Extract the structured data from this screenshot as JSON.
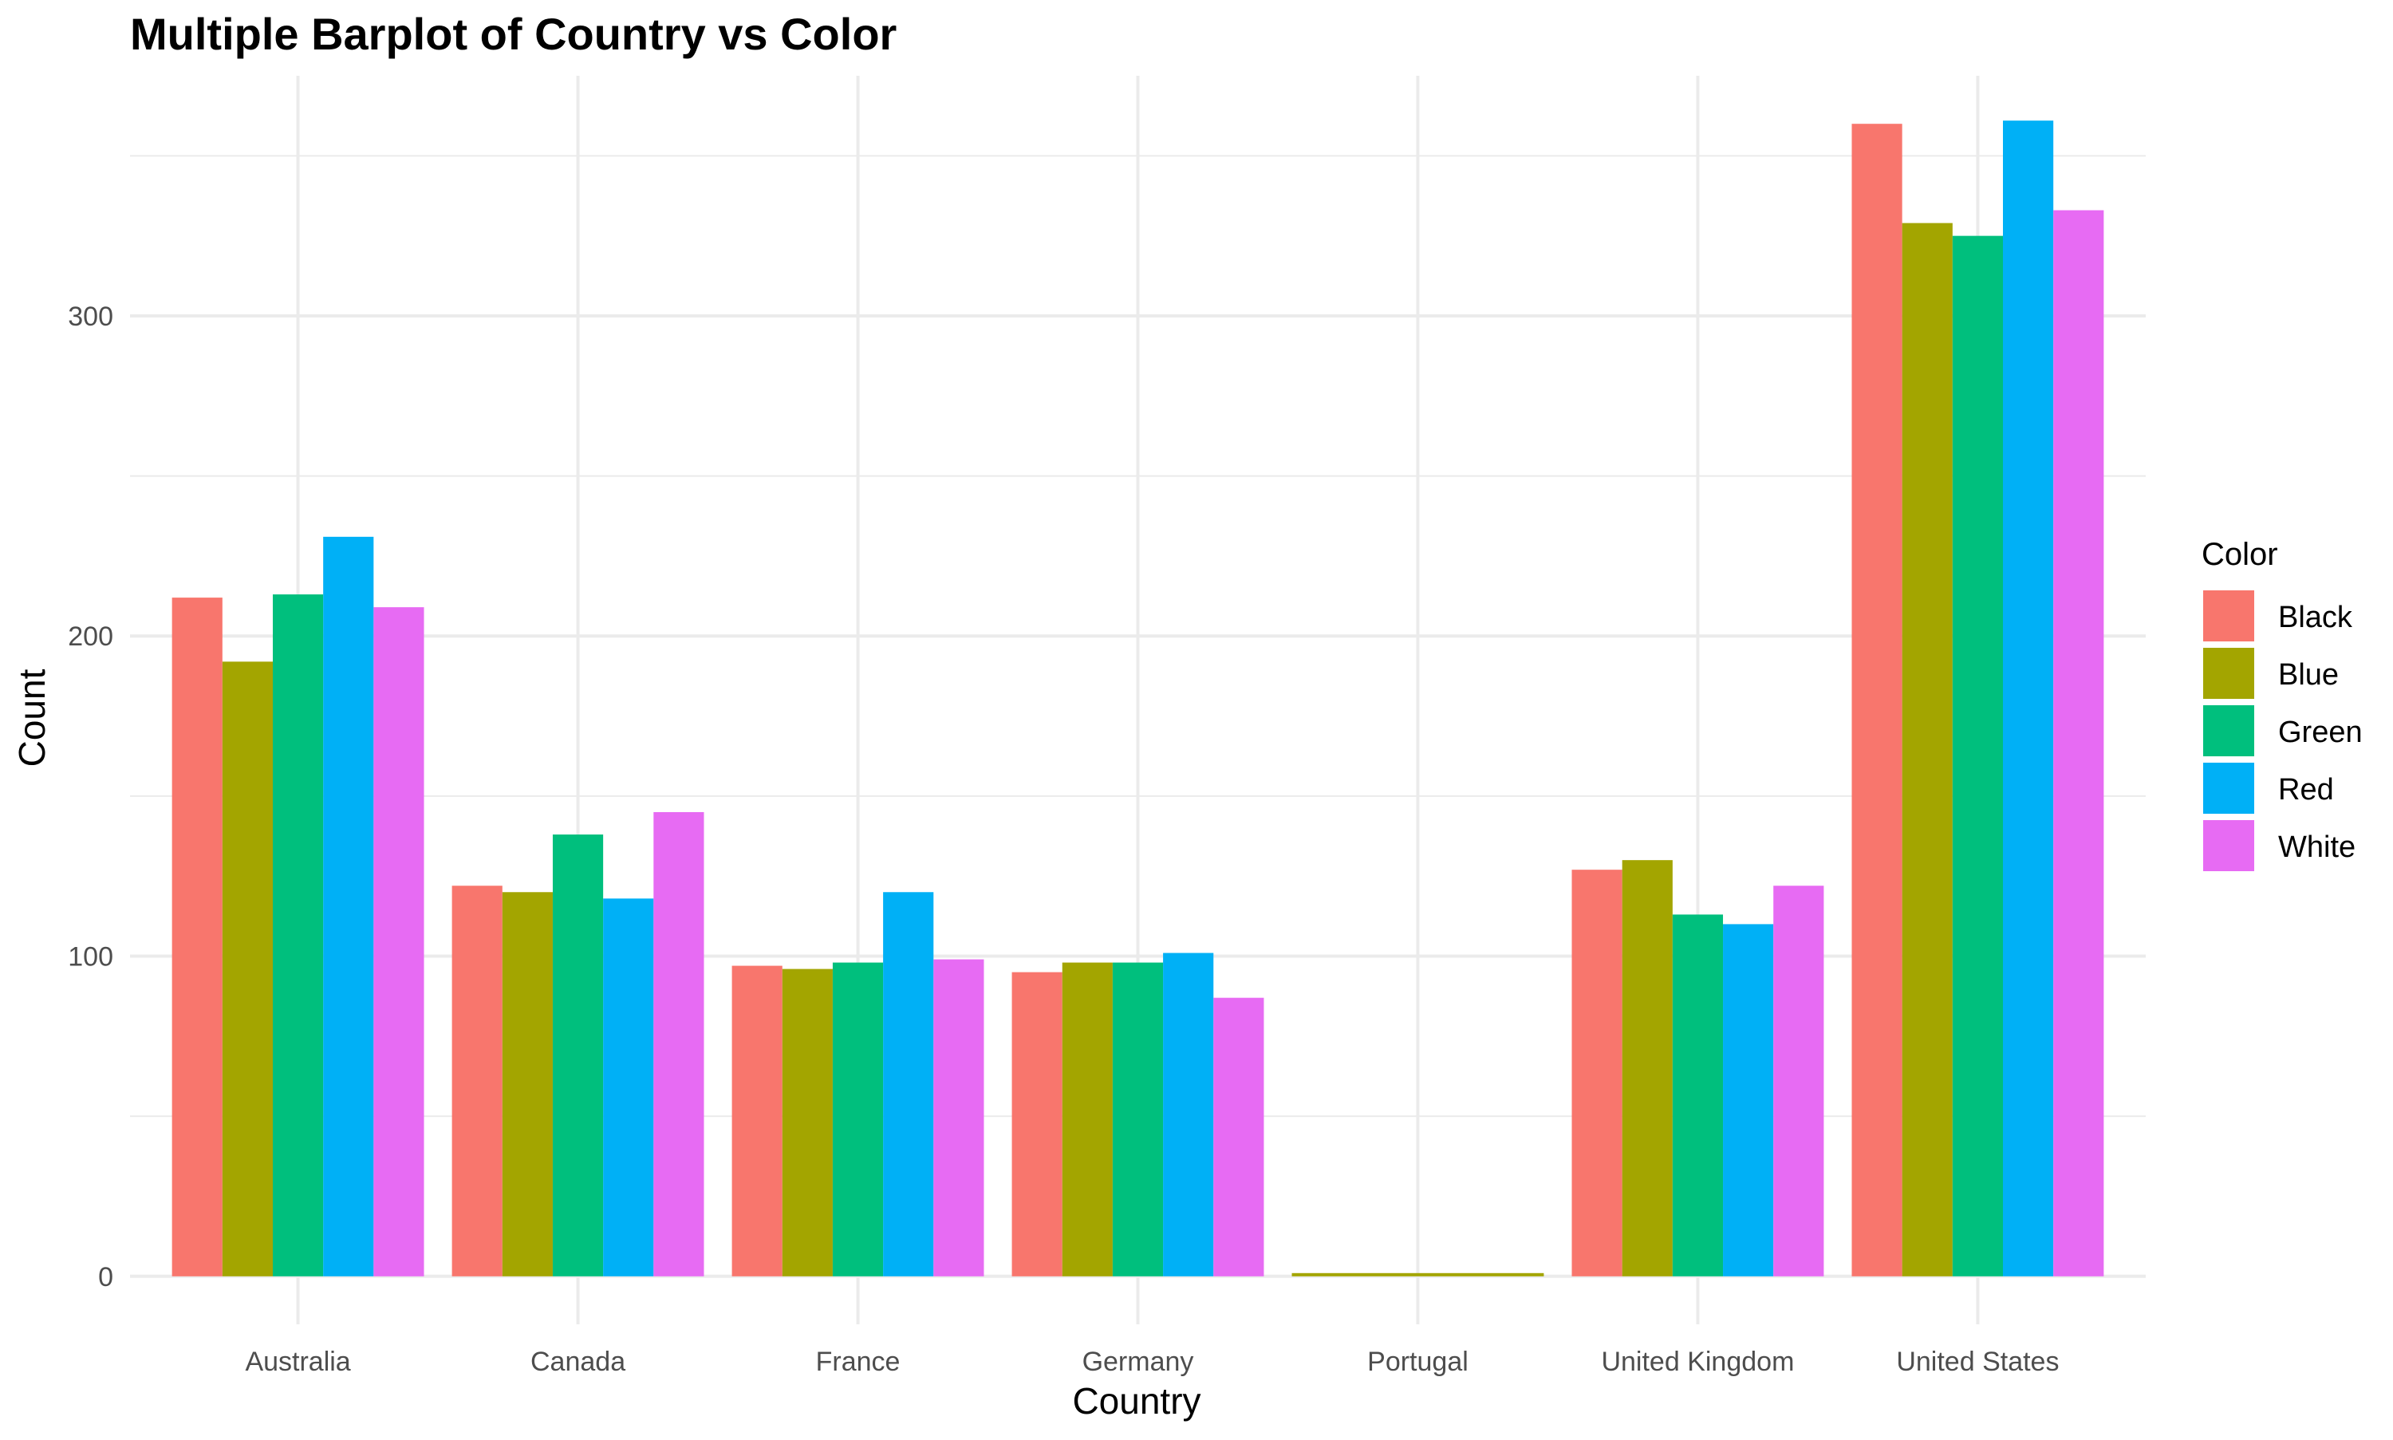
{
  "chart_data": {
    "type": "bar",
    "title": "Multiple Barplot of Country vs Color",
    "xlabel": "Country",
    "ylabel": "Count",
    "legend_title": "Color",
    "legend_position": "right",
    "grid": true,
    "ylim": [
      -15,
      375
    ],
    "yticks": [
      0,
      100,
      200,
      300
    ],
    "ytick_labels": [
      "0",
      "100",
      "200",
      "300"
    ],
    "categories": [
      "Australia",
      "Canada",
      "France",
      "Germany",
      "Portugal",
      "United Kingdom",
      "United States"
    ],
    "series": [
      {
        "name": "Black",
        "color": "#F8766D",
        "values": [
          212,
          122,
          97,
          95,
          null,
          127,
          360
        ]
      },
      {
        "name": "Blue",
        "color": "#A3A500",
        "values": [
          192,
          120,
          96,
          98,
          1,
          130,
          329
        ]
      },
      {
        "name": "Green",
        "color": "#00BF7D",
        "values": [
          213,
          138,
          98,
          98,
          null,
          113,
          325
        ]
      },
      {
        "name": "Red",
        "color": "#00B0F6",
        "values": [
          231,
          118,
          120,
          101,
          null,
          110,
          361
        ]
      },
      {
        "name": "White",
        "color": "#E76BF3",
        "values": [
          209,
          145,
          99,
          87,
          null,
          122,
          333
        ]
      }
    ]
  }
}
